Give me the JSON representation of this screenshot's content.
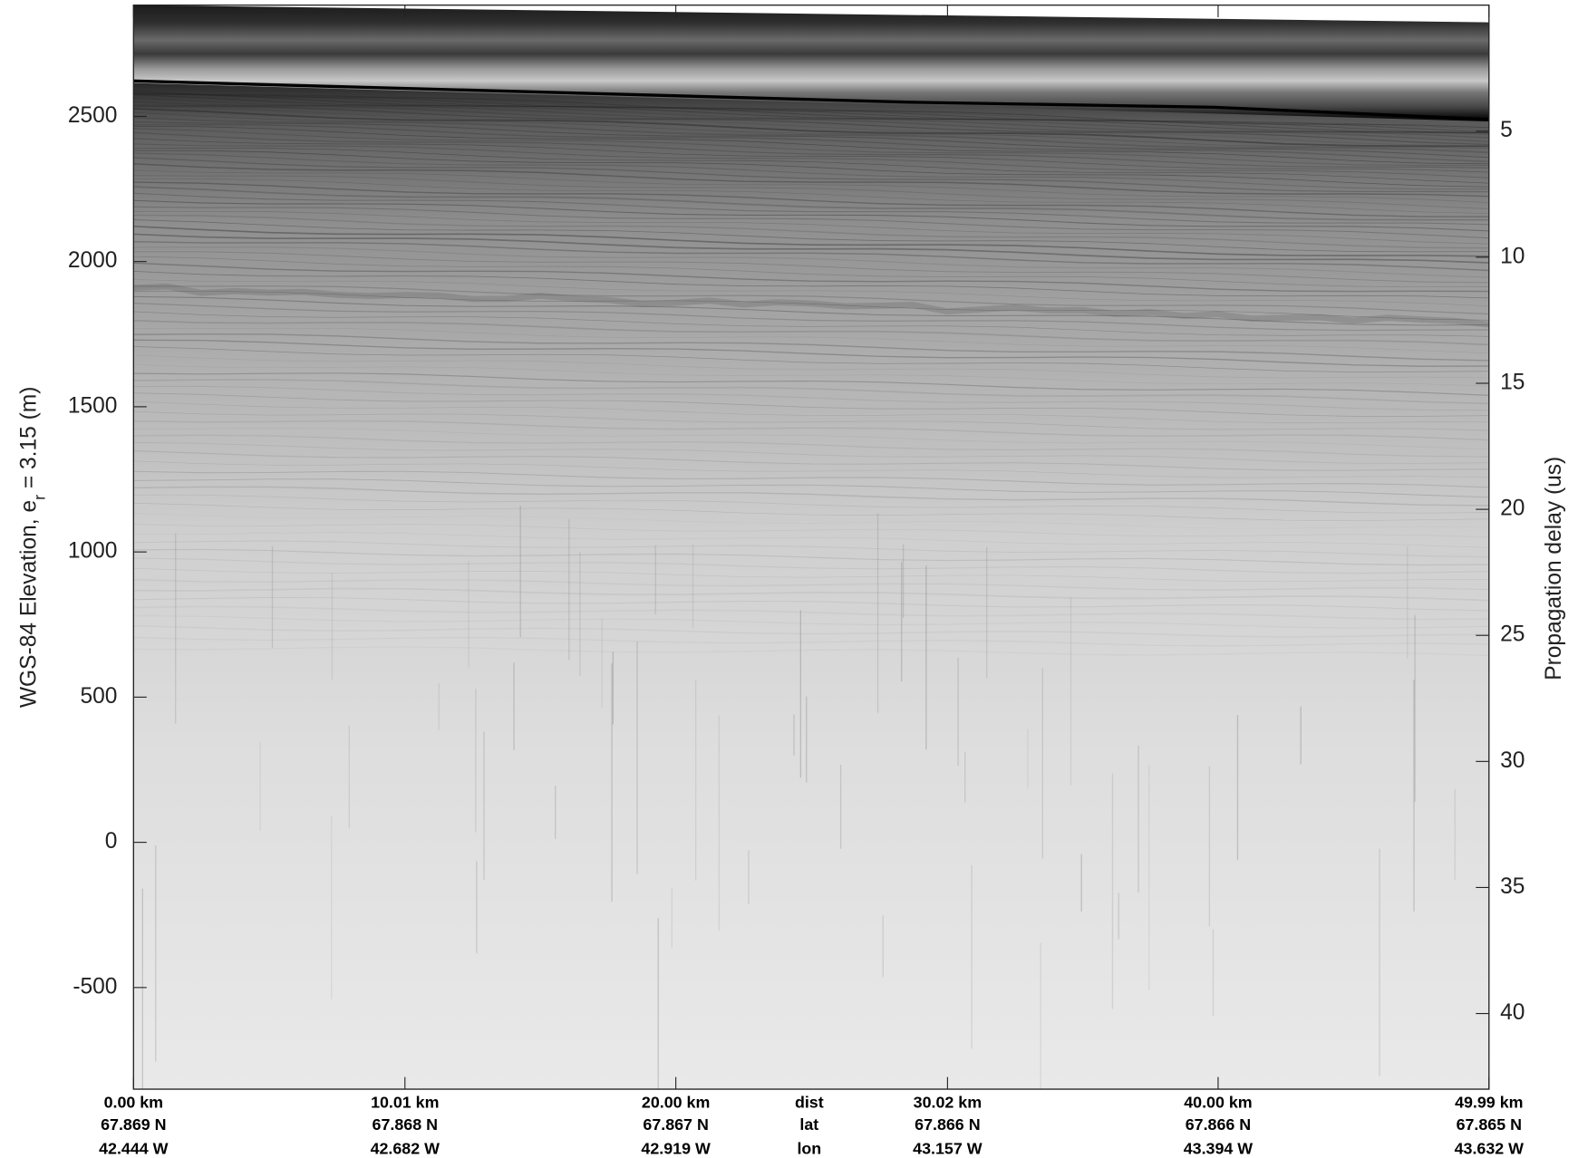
{
  "chart_data": {
    "type": "echogram",
    "ylabel_parts": [
      "WGS-84 Elevation, e",
      "r",
      " = 3.15 (m)"
    ],
    "y2label": "Propagation delay (us)",
    "xlim": [
      0,
      49.99
    ],
    "xticks": [
      {
        "value": 0,
        "label": "0.00 km"
      },
      {
        "value": 10.01,
        "label": "10.01 km"
      },
      {
        "value": 20,
        "label": "20.00 km"
      },
      {
        "value": 30.02,
        "label": "30.02 km"
      },
      {
        "value": 40,
        "label": "40.00 km"
      },
      {
        "value": 49.99,
        "label": "49.99 km"
      }
    ],
    "row_names": [
      "dist",
      "lat",
      "lon"
    ],
    "xtick_lat": [
      "67.869 N",
      "67.868 N",
      "67.867 N",
      "67.866 N",
      "67.866 N",
      "67.865 N"
    ],
    "xtick_lon": [
      "42.444 W",
      "42.682 W",
      "42.919 W",
      "43.157 W",
      "43.394 W",
      "43.632 W"
    ],
    "ylim": [
      -850,
      2883
    ],
    "yticks": [
      -500,
      0,
      500,
      1000,
      1500,
      2000,
      2500
    ],
    "y2lim": [
      0,
      43
    ],
    "y2ticks": [
      5,
      10,
      15,
      20,
      25,
      30,
      35,
      40
    ]
  }
}
